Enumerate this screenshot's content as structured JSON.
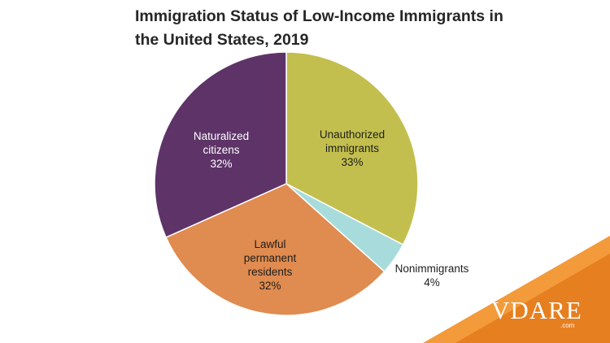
{
  "chart_data": {
    "type": "pie",
    "title_lines": [
      "Immigration Status of Low-Income Immigrants in",
      "the United States, 2019"
    ],
    "start_angle_deg": 0,
    "direction": "clockwise",
    "slices": [
      {
        "label_lines": [
          "Unauthorized",
          "immigrants"
        ],
        "value_label": "33%",
        "value": 33,
        "color": "#c3bf4e",
        "label_color": "#1e1e1e"
      },
      {
        "label_lines": [
          "Nonimmigrants"
        ],
        "value_label": "4%",
        "value": 4,
        "color": "#a8dcdc",
        "label_color": "#1e1e1e"
      },
      {
        "label_lines": [
          "Lawful",
          "permanent",
          "residents"
        ],
        "value_label": "32%",
        "value": 32,
        "color": "#e08b4f",
        "label_color": "#1e1e1e"
      },
      {
        "label_lines": [
          "Naturalized",
          "citizens"
        ],
        "value_label": "32%",
        "value": 32,
        "color": "#5e3468",
        "label_color": "#ffffff"
      }
    ]
  },
  "brand": {
    "name": "VDARE",
    "sub": ".com",
    "accent": "#f08a24"
  }
}
